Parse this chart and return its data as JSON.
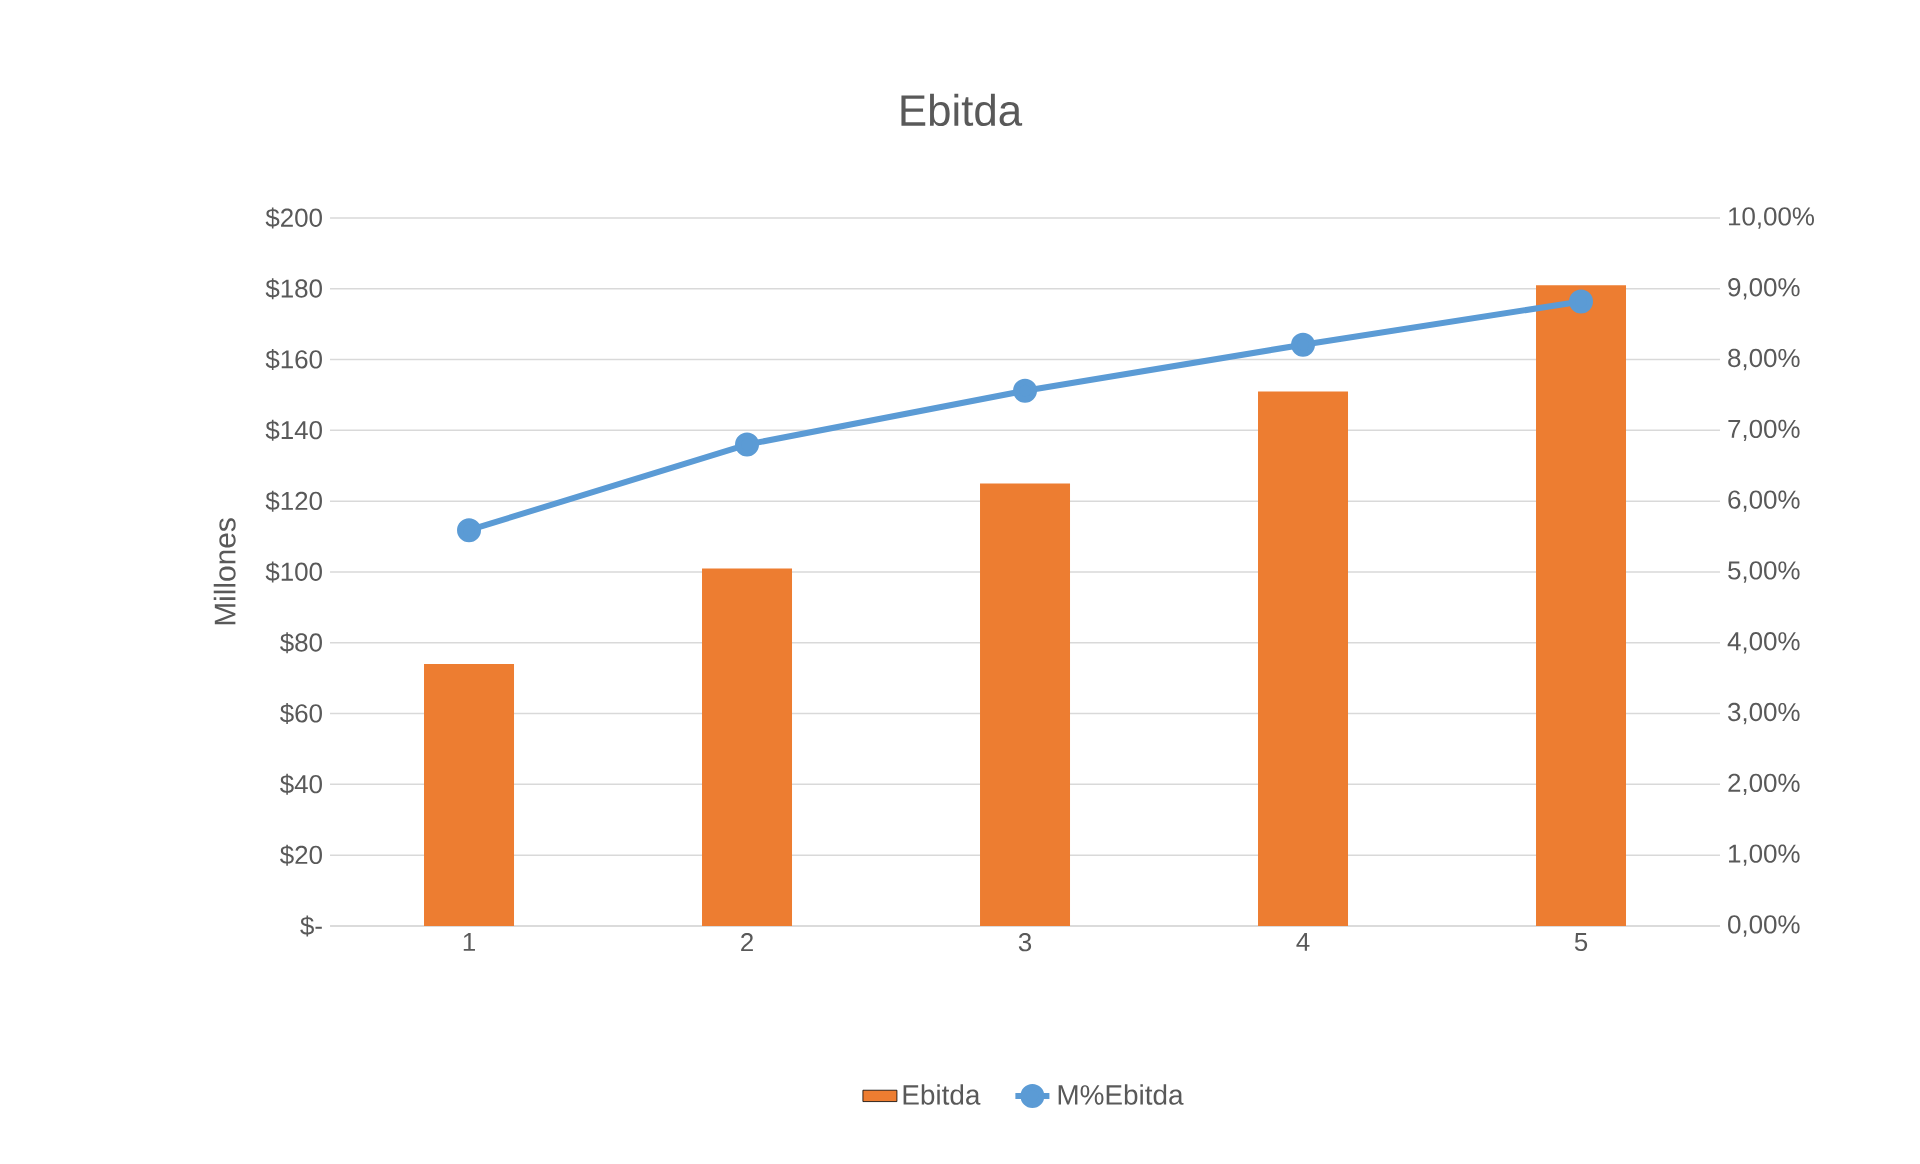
{
  "chart_data": {
    "type": "bar",
    "title": "Ebitda",
    "ylabel": "Millones",
    "categories": [
      "1",
      "2",
      "3",
      "4",
      "5"
    ],
    "series": [
      {
        "name": "Ebitda",
        "color": "#ed7d31",
        "values": [
          74,
          101,
          125,
          151,
          181
        ]
      },
      {
        "name": "M%Ebitda",
        "type": "line",
        "axis": "y2",
        "color": "#5b9bd5",
        "values": [
          5.59,
          6.8,
          7.56,
          8.21,
          8.82
        ]
      }
    ],
    "ylim": [
      0,
      200
    ],
    "yticks": [
      {
        "value": 0,
        "label": "$-"
      },
      {
        "value": 20,
        "label": "$20"
      },
      {
        "value": 40,
        "label": "$40"
      },
      {
        "value": 60,
        "label": "$60"
      },
      {
        "value": 80,
        "label": "$80"
      },
      {
        "value": 100,
        "label": "$100"
      },
      {
        "value": 120,
        "label": "$120"
      },
      {
        "value": 140,
        "label": "$140"
      },
      {
        "value": 160,
        "label": "$160"
      },
      {
        "value": 180,
        "label": "$180"
      },
      {
        "value": 200,
        "label": "$200"
      }
    ],
    "y2lim": [
      0,
      10
    ],
    "y2ticks": [
      {
        "value": 0,
        "label": "0,00%"
      },
      {
        "value": 1,
        "label": "1,00%"
      },
      {
        "value": 2,
        "label": "2,00%"
      },
      {
        "value": 3,
        "label": "3,00%"
      },
      {
        "value": 4,
        "label": "4,00%"
      },
      {
        "value": 5,
        "label": "5,00%"
      },
      {
        "value": 6,
        "label": "6,00%"
      },
      {
        "value": 7,
        "label": "7,00%"
      },
      {
        "value": 8,
        "label": "8,00%"
      },
      {
        "value": 9,
        "label": "9,00%"
      },
      {
        "value": 10,
        "label": "10,00%"
      }
    ],
    "grid": "y",
    "legend": "bottom",
    "marker": "circle",
    "line_style": "solid"
  }
}
